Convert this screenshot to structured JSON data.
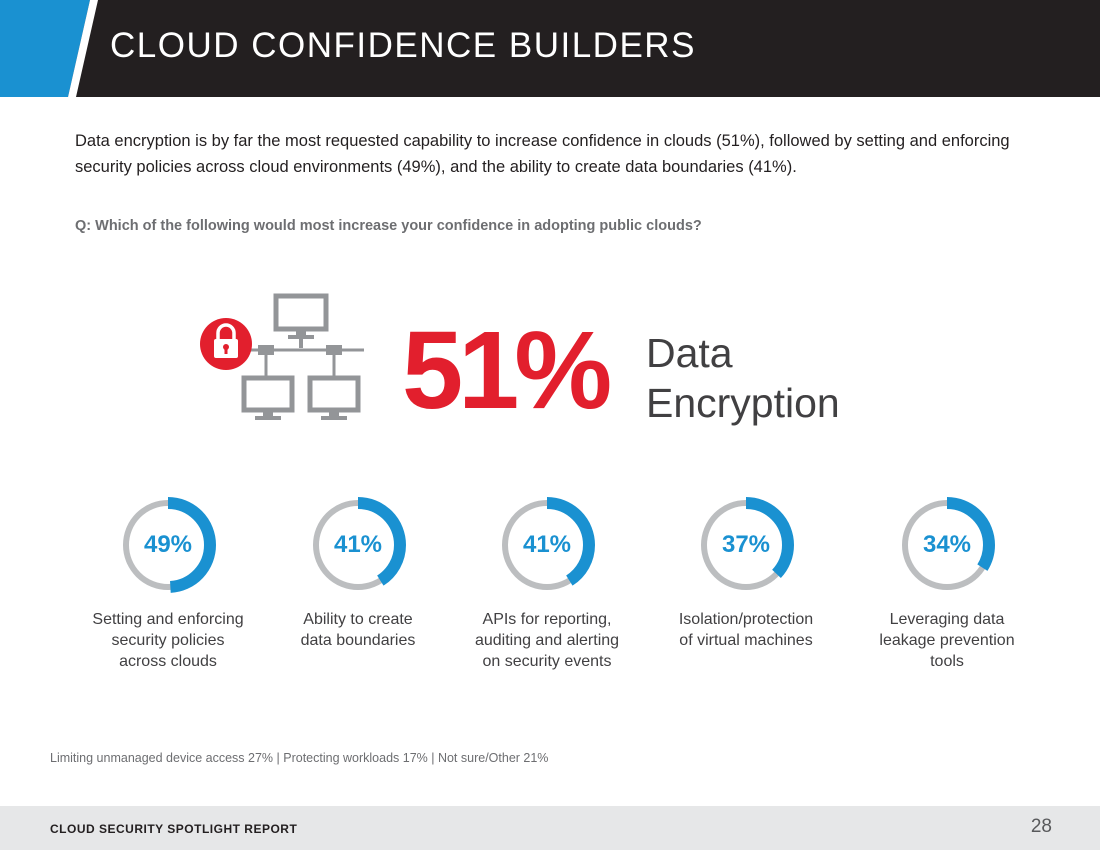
{
  "header": {
    "title": "CLOUD CONFIDENCE BUILDERS",
    "colors": {
      "background": "#231f20",
      "accent": "#1a91d1"
    }
  },
  "intro": "Data encryption is by far the most requested capability to increase confidence in clouds (51%), followed by setting and enforcing security policies across cloud environments (49%), and the ability to create data boundaries (41%).",
  "question": "Q: Which of the following would most increase your confidence in adopting public clouds?",
  "highlight": {
    "value": "51%",
    "label_line1": "Data",
    "label_line2": "Encryption",
    "icon": "network-lock-icon",
    "color": "#e21f2d"
  },
  "chart_data": {
    "type": "donut",
    "series": [
      {
        "label": "Setting and enforcing security policies across clouds",
        "value": 49,
        "display": "49%"
      },
      {
        "label": "Ability to create data boundaries",
        "value": 41,
        "display": "41%"
      },
      {
        "label": "APIs for reporting, auditing and alerting on security events",
        "value": 41,
        "display": "41%"
      },
      {
        "label": "Isolation/protection of virtual machines",
        "value": 37,
        "display": "37%"
      },
      {
        "label": "Leveraging data leakage prevention tools",
        "value": 34,
        "display": "34%"
      }
    ],
    "colors": {
      "fill": "#1a91d1",
      "track": "#bcbec0"
    }
  },
  "donut_labels": [
    [
      "Setting and enforcing",
      "security policies",
      "across clouds"
    ],
    [
      "Ability to create",
      "data boundaries"
    ],
    [
      "APIs for reporting,",
      "auditing and alerting",
      "on security events"
    ],
    [
      "Isolation/protection",
      "of virtual machines"
    ],
    [
      "Leveraging data",
      "leakage prevention",
      "tools"
    ]
  ],
  "other_note": "Limiting unmanaged device access 27%  |  Protecting workloads 17%  |  Not sure/Other 21%",
  "footer": {
    "title": "CLOUD SECURITY SPOTLIGHT REPORT",
    "page_number": "28"
  }
}
